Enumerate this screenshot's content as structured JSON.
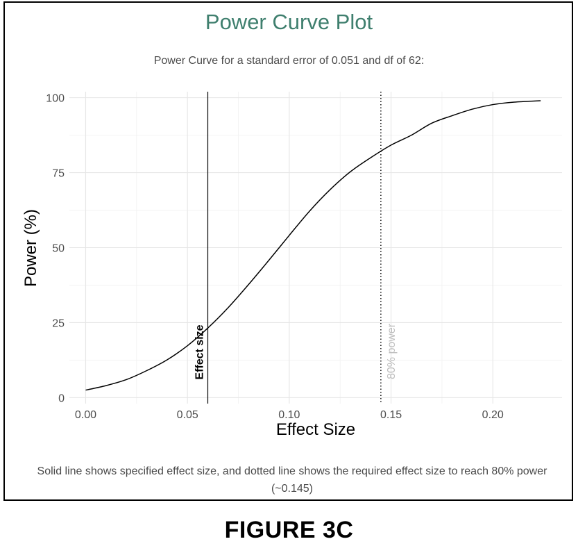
{
  "figure_label": "FIGURE 3C",
  "chart_data": {
    "type": "line",
    "title": "Power Curve Plot",
    "subtitle": "Power Curve for a standard error of 0.051 and df of 62:",
    "xlabel": "Effect Size",
    "ylabel": "Power (%)",
    "xlim": [
      -0.008,
      0.234
    ],
    "ylim": [
      -2,
      102
    ],
    "x_ticks": [
      0.0,
      0.05,
      0.1,
      0.15,
      0.2
    ],
    "x_tick_labels": [
      "0.00",
      "0.05",
      "0.10",
      "0.15",
      "0.20"
    ],
    "y_ticks": [
      0,
      25,
      50,
      75,
      100
    ],
    "y_tick_labels": [
      "0",
      "25",
      "50",
      "75",
      "100"
    ],
    "grid": true,
    "series": [
      {
        "color": "#000000",
        "x": [
          0.0,
          0.01,
          0.02,
          0.03,
          0.04,
          0.05,
          0.06,
          0.07,
          0.08,
          0.09,
          0.1,
          0.11,
          0.12,
          0.13,
          0.14,
          0.15,
          0.16,
          0.17,
          0.18,
          0.19,
          0.2,
          0.21,
          0.2235
        ],
        "y": [
          2.5,
          4.0,
          6.0,
          9.0,
          12.6,
          17.3,
          23.2,
          30.0,
          37.7,
          45.8,
          54.1,
          62.2,
          69.3,
          75.3,
          80.0,
          84.2,
          87.5,
          91.5,
          94.0,
          96.2,
          97.7,
          98.5,
          99.0
        ]
      }
    ],
    "vlines": [
      {
        "x": 0.06,
        "style": "solid",
        "color": "#000000",
        "label": "Effect size",
        "label_color": "#000000"
      },
      {
        "x": 0.145,
        "style": "dotted",
        "color": "#000000",
        "label": "80% power",
        "label_color": "#bdbdbd"
      }
    ],
    "caption": "Solid line shows specified effect size, and dotted line shows the required effect size to reach 80% power (~0.145)"
  }
}
